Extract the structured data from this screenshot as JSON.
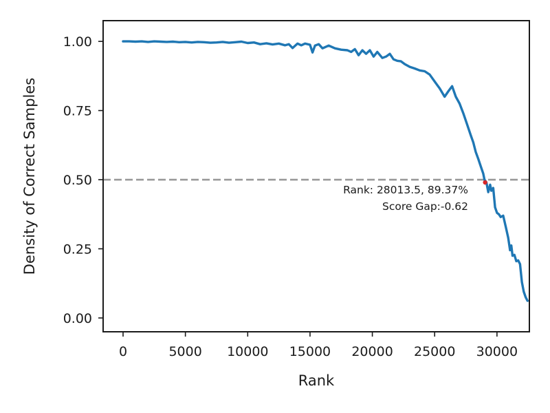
{
  "chart_data": {
    "type": "line",
    "title": "",
    "xlabel": "Rank",
    "ylabel": "Density of Correct Samples",
    "xlim": [
      -1600,
      32600
    ],
    "ylim": [
      -0.05,
      1.075
    ],
    "x_ticks": [
      0,
      5000,
      10000,
      15000,
      20000,
      25000,
      30000
    ],
    "x_tick_labels": [
      "0",
      "5000",
      "10000",
      "15000",
      "20000",
      "25000",
      "30000"
    ],
    "y_ticks": [
      0.0,
      0.25,
      0.5,
      0.75,
      1.0
    ],
    "y_tick_labels": [
      "0.00",
      "0.25",
      "0.50",
      "0.75",
      "1.00"
    ],
    "grid": false,
    "series": [
      {
        "color": "#1f77b4",
        "points": [
          [
            0,
            1.0
          ],
          [
            500,
            1.0
          ],
          [
            1000,
            0.999
          ],
          [
            1500,
            1.0
          ],
          [
            2000,
            0.998
          ],
          [
            2500,
            1.0
          ],
          [
            3000,
            0.999
          ],
          [
            3500,
            0.998
          ],
          [
            4000,
            0.999
          ],
          [
            4500,
            0.997
          ],
          [
            5000,
            0.998
          ],
          [
            5500,
            0.996
          ],
          [
            6000,
            0.998
          ],
          [
            6500,
            0.997
          ],
          [
            7000,
            0.995
          ],
          [
            7500,
            0.996
          ],
          [
            8000,
            0.998
          ],
          [
            8500,
            0.995
          ],
          [
            9000,
            0.997
          ],
          [
            9500,
            0.999
          ],
          [
            10000,
            0.994
          ],
          [
            10500,
            0.996
          ],
          [
            11000,
            0.99
          ],
          [
            11500,
            0.993
          ],
          [
            12000,
            0.989
          ],
          [
            12500,
            0.992
          ],
          [
            13000,
            0.986
          ],
          [
            13300,
            0.99
          ],
          [
            13600,
            0.976
          ],
          [
            14000,
            0.992
          ],
          [
            14300,
            0.986
          ],
          [
            14600,
            0.992
          ],
          [
            15000,
            0.988
          ],
          [
            15200,
            0.96
          ],
          [
            15400,
            0.985
          ],
          [
            15700,
            0.99
          ],
          [
            16000,
            0.975
          ],
          [
            16500,
            0.985
          ],
          [
            17000,
            0.975
          ],
          [
            17500,
            0.97
          ],
          [
            18000,
            0.968
          ],
          [
            18300,
            0.962
          ],
          [
            18600,
            0.972
          ],
          [
            18900,
            0.95
          ],
          [
            19200,
            0.968
          ],
          [
            19500,
            0.955
          ],
          [
            19800,
            0.968
          ],
          [
            20100,
            0.945
          ],
          [
            20400,
            0.962
          ],
          [
            20800,
            0.94
          ],
          [
            21100,
            0.945
          ],
          [
            21400,
            0.955
          ],
          [
            21700,
            0.935
          ],
          [
            22000,
            0.93
          ],
          [
            22300,
            0.928
          ],
          [
            22600,
            0.918
          ],
          [
            23000,
            0.908
          ],
          [
            23400,
            0.902
          ],
          [
            23800,
            0.895
          ],
          [
            24200,
            0.892
          ],
          [
            24600,
            0.88
          ],
          [
            25000,
            0.855
          ],
          [
            25400,
            0.83
          ],
          [
            25800,
            0.8
          ],
          [
            26100,
            0.82
          ],
          [
            26400,
            0.838
          ],
          [
            26700,
            0.8
          ],
          [
            27000,
            0.775
          ],
          [
            27300,
            0.74
          ],
          [
            27600,
            0.7
          ],
          [
            27900,
            0.66
          ],
          [
            28100,
            0.635
          ],
          [
            28300,
            0.6
          ],
          [
            28500,
            0.575
          ],
          [
            28700,
            0.548
          ],
          [
            28900,
            0.522
          ],
          [
            29000,
            0.5
          ],
          [
            29150,
            0.49
          ],
          [
            29300,
            0.455
          ],
          [
            29450,
            0.482
          ],
          [
            29550,
            0.46
          ],
          [
            29700,
            0.47
          ],
          [
            29850,
            0.4
          ],
          [
            30000,
            0.38
          ],
          [
            30150,
            0.375
          ],
          [
            30300,
            0.365
          ],
          [
            30500,
            0.37
          ],
          [
            30700,
            0.33
          ],
          [
            30900,
            0.29
          ],
          [
            31050,
            0.245
          ],
          [
            31150,
            0.262
          ],
          [
            31250,
            0.225
          ],
          [
            31400,
            0.228
          ],
          [
            31550,
            0.205
          ],
          [
            31700,
            0.208
          ],
          [
            31850,
            0.195
          ],
          [
            32000,
            0.13
          ],
          [
            32150,
            0.095
          ],
          [
            32300,
            0.075
          ],
          [
            32450,
            0.062
          ]
        ]
      }
    ],
    "reference_line": {
      "y": 0.5,
      "color": "#999999",
      "style": "dashed"
    },
    "marker": {
      "x": 29050,
      "y": 0.49,
      "color": "#d62728"
    },
    "annotation": {
      "line1": "Rank: 28013.5, 89.37%",
      "line2": "Score Gap:-0.62"
    }
  }
}
